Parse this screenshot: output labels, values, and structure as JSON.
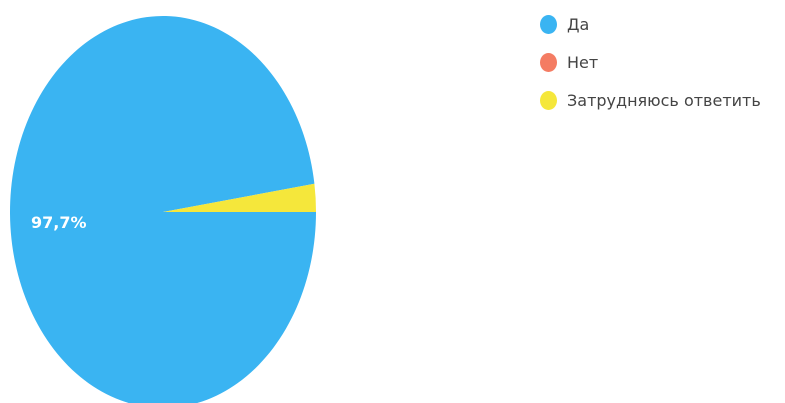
{
  "chart_data": {
    "type": "pie",
    "title": "",
    "categories": [
      "Да",
      "Нет",
      "Затрудняюсь ответить"
    ],
    "values": [
      97.7,
      0,
      2.3
    ],
    "colors": [
      "#3AB4F2",
      "#F47C63",
      "#F5E73B"
    ],
    "data_labels": [
      "97,7%",
      "",
      ""
    ],
    "legend_position": "top-right"
  }
}
